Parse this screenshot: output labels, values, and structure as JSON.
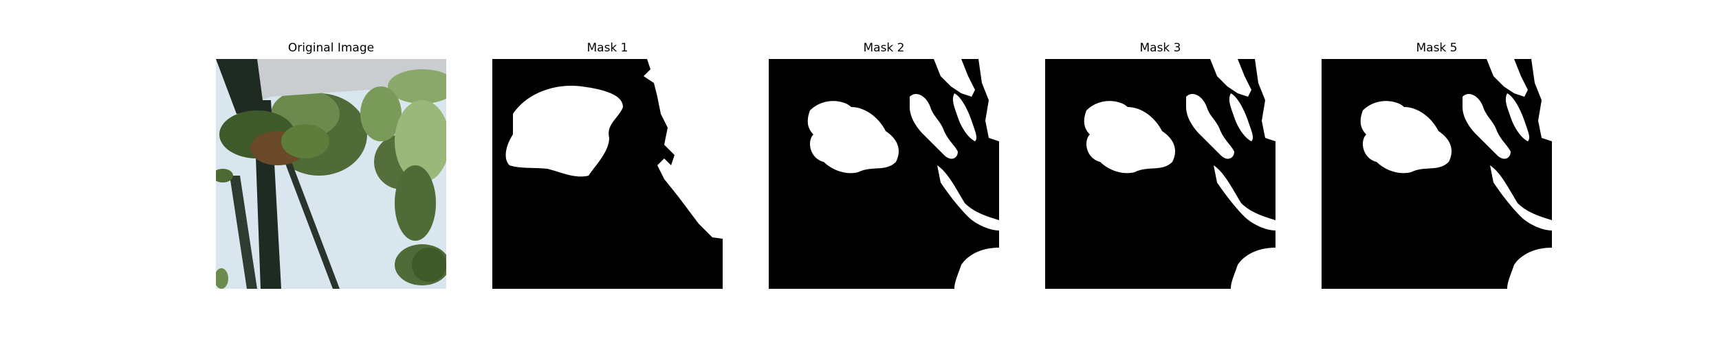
{
  "panels": [
    {
      "title": "Original Image"
    },
    {
      "title": "Mask 1"
    },
    {
      "title": "Mask 2"
    },
    {
      "title": "Mask 3"
    },
    {
      "title": "Mask 5"
    }
  ],
  "colors": {
    "mask_foreground": "#ffffff",
    "mask_background": "#000000",
    "sky": "#d9e6ee",
    "foliage_dark": "#3f5a2a",
    "foliage_light": "#8aa86a",
    "frame_dark": "#1f2a22",
    "beam": "#c9cdd0"
  }
}
